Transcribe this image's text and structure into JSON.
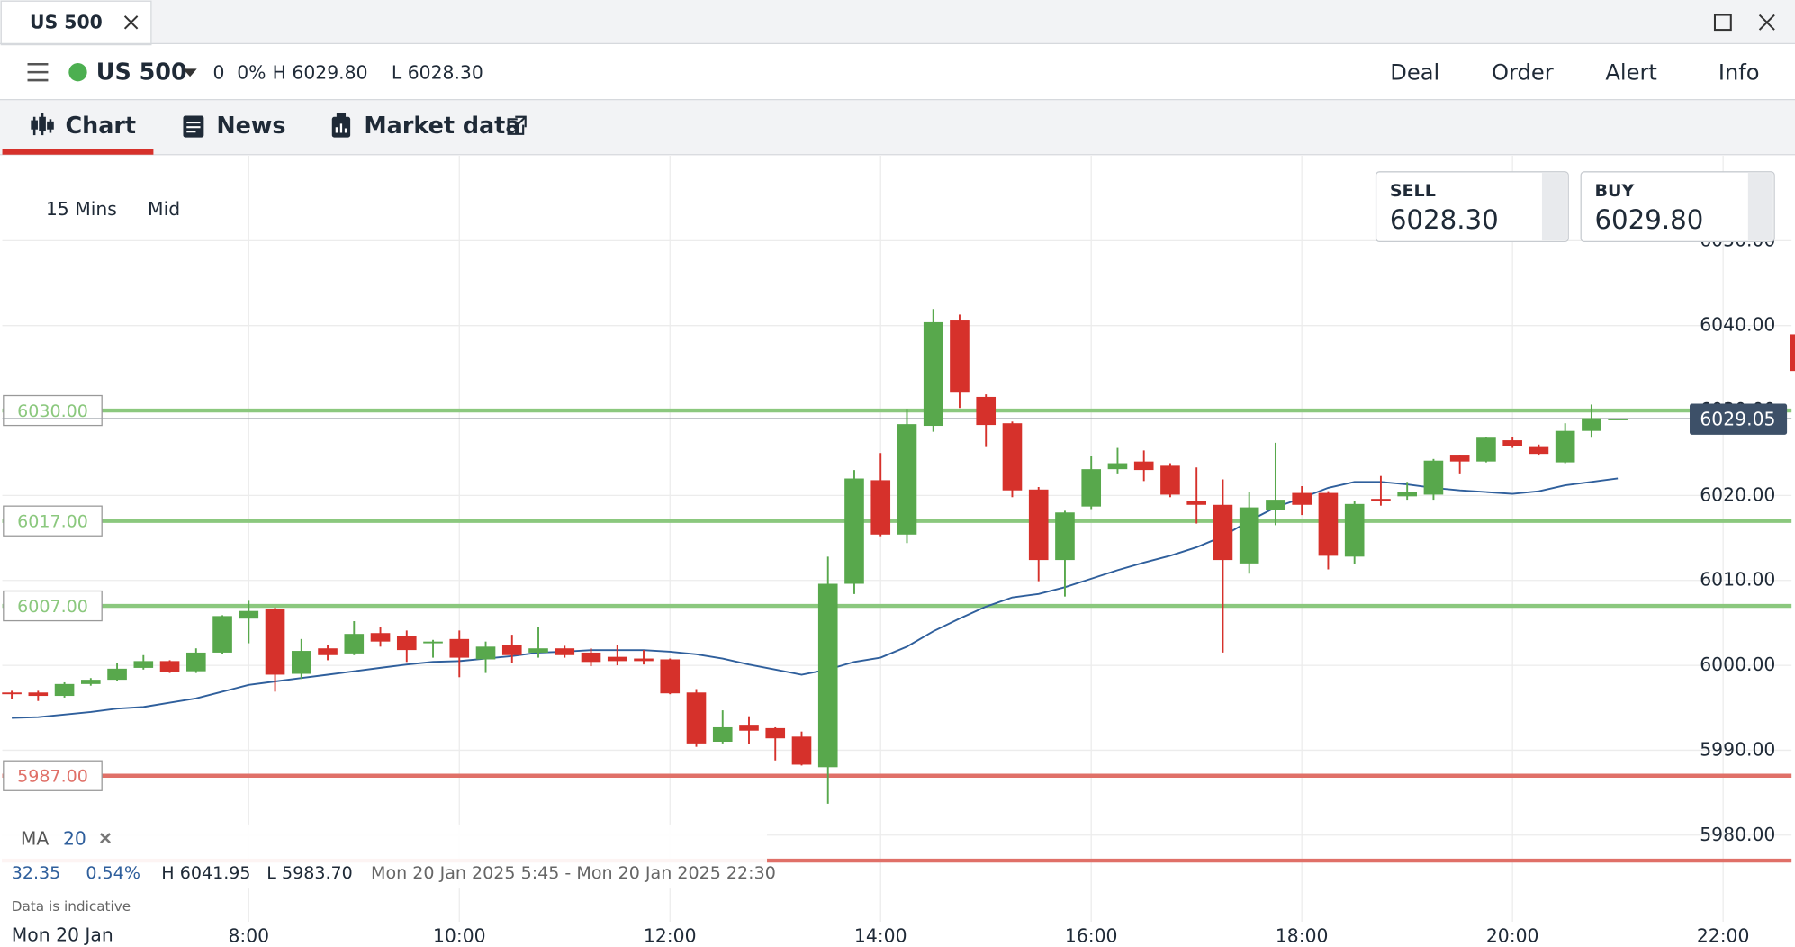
{
  "window": {
    "tab": "US 500"
  },
  "header": {
    "instrument": "US 500",
    "change": "0",
    "change_pct": "0%",
    "high": "H 6029.80",
    "low": "L 6028.30",
    "actions": [
      "Deal",
      "Order",
      "Alert",
      "Info"
    ]
  },
  "tabs": [
    "Chart",
    "News",
    "Market data"
  ],
  "controls": {
    "interval": "15 Mins",
    "price_type": "Mid"
  },
  "quotes": {
    "sell": {
      "label": "SELL",
      "price": "6028.30"
    },
    "buy": {
      "label": "BUY",
      "price": "6029.80"
    }
  },
  "stats": {
    "change": "32.35",
    "change_pct": "0.54%",
    "high": "H 6041.95",
    "low": "L 5983.70",
    "range": "Mon 20 Jan 2025 5:45 - Mon 20 Jan 2025 22:30"
  },
  "note": "Data is indicative",
  "date_label": "Mon 20 Jan",
  "chart_data": {
    "type": "candlestick",
    "up_color": "#58a84c",
    "down_color": "#d6312b",
    "x": [
      5.75,
      6,
      6.25,
      6.5,
      6.75,
      7,
      7.25,
      7.5,
      7.75,
      8,
      8.25,
      8.5,
      8.75,
      9,
      9.25,
      9.5,
      9.75,
      10,
      10.25,
      10.5,
      10.75,
      11,
      11.25,
      11.5,
      11.75,
      12,
      12.25,
      12.5,
      12.75,
      13,
      13.25,
      13.5,
      13.75,
      14,
      14.25,
      14.5,
      14.75,
      15,
      15.25,
      15.5,
      15.75,
      16,
      16.25,
      16.5,
      16.75,
      17,
      17.25,
      17.5,
      17.75,
      18,
      18.25,
      18.5,
      18.75,
      19,
      19.25,
      19.5,
      19.75,
      20,
      20.25,
      20.5,
      20.75,
      21
    ],
    "open": [
      5996.8,
      5996.8,
      5996.4,
      5997.8,
      5998.3,
      5999.7,
      6000.5,
      5999.3,
      6001.5,
      6005.5,
      6006.6,
      5999.0,
      6002,
      6001.4,
      6003.8,
      6003.5,
      6002.6,
      6003.1,
      6000.7,
      6002.4,
      6001.5,
      6002,
      6001.5,
      6001,
      6000.8,
      6000.7,
      5996.8,
      5991,
      5993,
      5992.6,
      5991.6,
      5988.0,
      6009.6,
      6021.8,
      6015.4,
      6028.2,
      6040.6,
      6031.6,
      6028.5,
      6020.7,
      6012.4,
      6018.7,
      6023.1,
      6024,
      6023.5,
      6019.3,
      6018.9,
      6012,
      6018.3,
      6020.3,
      6020.3,
      6012.8,
      6019.6,
      6019.9,
      6020.1,
      6024.7,
      6024,
      6026.5,
      6025.7,
      6023.9,
      6027.6,
      6029.05
    ],
    "high": [
      5997,
      5997,
      5998,
      5998.5,
      6000.3,
      6001.2,
      6000.6,
      6002,
      6005.9,
      6007.6,
      6006.8,
      6003.1,
      6002.4,
      6005.2,
      6004.5,
      6004.1,
      6003,
      6004.1,
      6002.8,
      6003.6,
      6004.5,
      6002.3,
      6002,
      6002.4,
      6001.8,
      6000.8,
      5997.2,
      5994.7,
      5994,
      5992.7,
      5992.2,
      6012.8,
      6023,
      6025,
      6030.2,
      6041.95,
      6041.3,
      6031.9,
      6028.7,
      6021,
      6018.2,
      6024.6,
      6025.6,
      6025.3,
      6023.8,
      6023.3,
      6021.9,
      6020.4,
      6026.2,
      6021.1,
      6020.5,
      6019.4,
      6022.3,
      6021.6,
      6024.3,
      6024.8,
      6026.9,
      6026.9,
      6026,
      6028.5,
      6030.7,
      6029.05
    ],
    "low": [
      5996,
      5995.8,
      5996.2,
      5997.6,
      5998.2,
      5999.5,
      5999.1,
      5999.1,
      6001.3,
      6002.6,
      5996.9,
      5998.4,
      6000.6,
      6001.2,
      6002.2,
      6000.4,
      6000.9,
      5998.6,
      5999.1,
      6000.3,
      6000.9,
      6000.9,
      5999.9,
      6000,
      6000.1,
      5996.6,
      5990.4,
      5990.8,
      5990.7,
      5988.8,
      5988.2,
      5983.7,
      6008.4,
      6015.2,
      6014.4,
      6027.5,
      6030.3,
      6025.7,
      6019.8,
      6009.9,
      6008.1,
      6018.4,
      6022.6,
      6021.7,
      6019.8,
      6016.7,
      6001.5,
      6010.8,
      6016.5,
      6017.7,
      6011.3,
      6011.9,
      6018.8,
      6019.5,
      6019.5,
      6022.6,
      6023.9,
      6025.6,
      6024.7,
      6023.8,
      6026.8,
      6029.05
    ],
    "close": [
      5996.6,
      5996.4,
      5997.8,
      5998.3,
      5999.6,
      6000.5,
      5999.2,
      6001.5,
      6005.8,
      6006.4,
      5998.9,
      6001.7,
      6001.2,
      6003.7,
      6002.8,
      6001.8,
      6002.8,
      6000.9,
      6002.2,
      6001.2,
      6002.0,
      6001.2,
      6000.4,
      6000.5,
      6000.5,
      5996.7,
      5990.8,
      5992.7,
      5992.3,
      5991.4,
      5988.3,
      6009.6,
      6022,
      6015.4,
      6028.4,
      6040.4,
      6032.1,
      6028.3,
      6020.6,
      6012.4,
      6018,
      6023.1,
      6023.8,
      6023,
      6020.1,
      6018.9,
      6012.4,
      6018.6,
      6019.5,
      6018.9,
      6012.9,
      6019,
      6019.4,
      6020.4,
      6024.1,
      6024,
      6026.8,
      6025.8,
      6024.9,
      6027.6,
      6029.1,
      6029.05
    ],
    "ma": {
      "name": "MA",
      "period": 20,
      "color": "#2f5f9c",
      "values": [
        5993.8,
        5993.9,
        5994.2,
        5994.5,
        5994.9,
        5995.1,
        5995.6,
        5996.1,
        5996.9,
        5997.7,
        5998.1,
        5998.5,
        5998.9,
        5999.3,
        5999.7,
        6000.1,
        6000.4,
        6000.5,
        6000.8,
        6001.1,
        6001.5,
        6001.6,
        6001.8,
        6001.8,
        6001.8,
        6001.6,
        6001.3,
        6000.8,
        6000.1,
        5999.5,
        5998.9,
        5999.5,
        6000.4,
        6000.9,
        6002.2,
        6004.0,
        6005.5,
        6006.9,
        6008.0,
        6008.4,
        6009.2,
        6010.2,
        6011.2,
        6012.1,
        6012.9,
        6013.9,
        6015.2,
        6017.0,
        6018.6,
        6019.7,
        6020.9,
        6021.6,
        6021.6,
        6021.3,
        6020.9,
        6020.6,
        6020.4,
        6020.2,
        6020.5,
        6021.2,
        6021.6,
        6022.0
      ]
    },
    "levels": [
      {
        "value": 6030,
        "label": "6030.00",
        "color": "#8bc87e"
      },
      {
        "value": 6017,
        "label": "6017.00",
        "color": "#8bc87e"
      },
      {
        "value": 6007,
        "label": "6007.00",
        "color": "#8bc87e"
      },
      {
        "value": 5987,
        "label": "5987.00",
        "color": "#e07068"
      },
      {
        "value": 5977,
        "color": "#e07068"
      }
    ],
    "current_price": {
      "value": 6029.05,
      "label": "6029.05"
    },
    "xlim": [
      5.66,
      22.65
    ],
    "ylim": [
      5969.8,
      6060
    ],
    "xticks": [
      {
        "value": 8,
        "label": "8:00"
      },
      {
        "value": 10,
        "label": "10:00"
      },
      {
        "value": 12,
        "label": "12:00"
      },
      {
        "value": 14,
        "label": "14:00"
      },
      {
        "value": 16,
        "label": "16:00"
      },
      {
        "value": 18,
        "label": "18:00"
      },
      {
        "value": 20,
        "label": "20:00"
      },
      {
        "value": 22,
        "label": "22:00"
      }
    ],
    "yticks": [
      {
        "value": 6050,
        "label": "6050.00"
      },
      {
        "value": 6040,
        "label": "6040.00"
      },
      {
        "value": 6030,
        "label": "6030.00"
      },
      {
        "value": 6020,
        "label": "6020.00"
      },
      {
        "value": 6010,
        "label": "6010.00"
      },
      {
        "value": 6000,
        "label": "6000.00"
      },
      {
        "value": 5990,
        "label": "5990.00"
      },
      {
        "value": 5980,
        "label": "5980.00"
      }
    ],
    "grid": true
  }
}
